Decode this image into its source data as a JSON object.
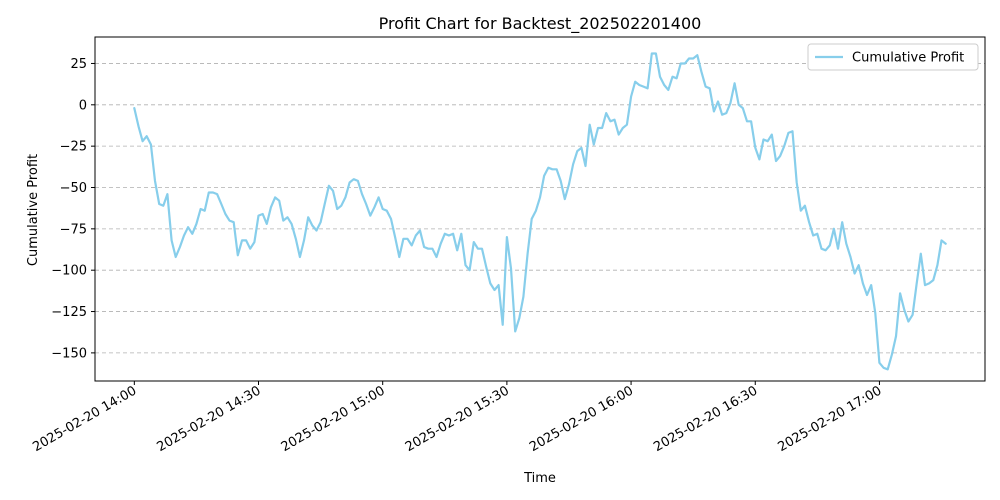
{
  "chart_data": {
    "type": "line",
    "title": "Profit Chart for Backtest_202502201400",
    "xlabel": "Time",
    "ylabel": "Cumulative Profit",
    "ylim": [
      -167,
      41
    ],
    "yticks": [
      25,
      0,
      -25,
      -50,
      -75,
      -100,
      -125,
      -150
    ],
    "ytick_labels": [
      "25",
      "0",
      "−25",
      "−50",
      "−75",
      "−100",
      "−125",
      "−150"
    ],
    "xlim_minutes": [
      -9.5,
      205.5
    ],
    "xticks_minutes": [
      0,
      30,
      60,
      90,
      120,
      150,
      180
    ],
    "xtick_labels": [
      "2025-02-20 14:00",
      "2025-02-20 14:30",
      "2025-02-20 15:00",
      "2025-02-20 15:30",
      "2025-02-20 16:00",
      "2025-02-20 16:30",
      "2025-02-20 17:00"
    ],
    "grid": "y-dashed",
    "legend_position": "top-right",
    "color": "#87ceeb",
    "series": [
      {
        "name": "Cumulative Profit",
        "x": [
          "14:00",
          "14:01",
          "14:02",
          "14:03",
          "14:04",
          "14:05",
          "14:06",
          "14:07",
          "14:08",
          "14:09",
          "14:10",
          "14:11",
          "14:12",
          "14:13",
          "14:14",
          "14:15",
          "14:16",
          "14:17",
          "14:18",
          "14:19",
          "14:20",
          "14:21",
          "14:22",
          "14:23",
          "14:24",
          "14:25",
          "14:26",
          "14:27",
          "14:28",
          "14:29",
          "14:30",
          "14:31",
          "14:32",
          "14:33",
          "14:34",
          "14:35",
          "14:36",
          "14:37",
          "14:38",
          "14:39",
          "14:40",
          "14:41",
          "14:42",
          "14:43",
          "14:44",
          "14:45",
          "14:46",
          "14:47",
          "14:48",
          "14:49",
          "14:50",
          "14:51",
          "14:52",
          "14:53",
          "14:54",
          "14:55",
          "14:56",
          "14:57",
          "14:58",
          "14:59",
          "15:00",
          "15:01",
          "15:02",
          "15:03",
          "15:04",
          "15:05",
          "15:06",
          "15:07",
          "15:08",
          "15:09",
          "15:10",
          "15:11",
          "15:12",
          "15:13",
          "15:14",
          "15:15",
          "15:16",
          "15:17",
          "15:18",
          "15:19",
          "15:20",
          "15:21",
          "15:22",
          "15:23",
          "15:24",
          "15:25",
          "15:26",
          "15:27",
          "15:28",
          "15:29",
          "15:30",
          "15:31",
          "15:32",
          "15:33",
          "15:34",
          "15:35",
          "15:36",
          "15:37",
          "15:38",
          "15:39",
          "15:40",
          "15:41",
          "15:42",
          "15:43",
          "15:44",
          "15:45",
          "15:46",
          "15:47",
          "15:48",
          "15:49",
          "15:50",
          "15:51",
          "15:52",
          "15:53",
          "15:54",
          "15:55",
          "15:56",
          "15:57",
          "15:58",
          "15:59",
          "16:00",
          "16:01",
          "16:02",
          "16:03",
          "16:04",
          "16:05",
          "16:06",
          "16:07",
          "16:08",
          "16:09",
          "16:10",
          "16:11",
          "16:12",
          "16:13",
          "16:14",
          "16:15",
          "16:16",
          "16:17",
          "16:18",
          "16:19",
          "16:20",
          "16:21",
          "16:22",
          "16:23",
          "16:24",
          "16:25",
          "16:26",
          "16:27",
          "16:28",
          "16:29",
          "16:30",
          "16:31",
          "16:32",
          "16:33",
          "16:34",
          "16:35",
          "16:36",
          "16:37",
          "16:38",
          "16:39",
          "16:40",
          "16:41",
          "16:42",
          "16:43",
          "16:44",
          "16:45",
          "16:46",
          "16:47",
          "16:48",
          "16:49",
          "16:50",
          "16:51",
          "16:52",
          "16:53",
          "16:54",
          "16:55",
          "16:56",
          "16:57",
          "16:58",
          "16:59",
          "17:00",
          "17:01",
          "17:02",
          "17:03",
          "17:04",
          "17:05",
          "17:06",
          "17:07",
          "17:08",
          "17:09",
          "17:10",
          "17:11",
          "17:12",
          "17:13",
          "17:14",
          "17:15",
          "17:16"
        ],
        "values": [
          -2,
          -13,
          -22,
          -19,
          -24,
          -46,
          -60,
          -61,
          -54,
          -82,
          -92,
          -86,
          -79,
          -74,
          -78,
          -72,
          -63,
          -64,
          -53,
          -53,
          -54,
          -60,
          -66,
          -70,
          -71,
          -91,
          -82,
          -82,
          -87,
          -83,
          -67,
          -66,
          -72,
          -62,
          -56,
          -58,
          -70,
          -68,
          -72,
          -81,
          -92,
          -82,
          -68,
          -73,
          -76,
          -71,
          -60,
          -49,
          -52,
          -63,
          -61,
          -56,
          -47,
          -45,
          -46,
          -54,
          -60,
          -67,
          -62,
          -56,
          -63,
          -64,
          -69,
          -80,
          -92,
          -81,
          -81,
          -85,
          -79,
          -76,
          -86,
          -87,
          -87,
          -92,
          -84,
          -78,
          -79,
          -78,
          -88,
          -78,
          -97,
          -100,
          -83,
          -87,
          -87,
          -98,
          -108,
          -112,
          -109,
          -133,
          -80,
          -99,
          -137,
          -129,
          -116,
          -90,
          -69,
          -64,
          -56,
          -43,
          -38,
          -39,
          -39,
          -46,
          -57,
          -48,
          -36,
          -28,
          -26,
          -37,
          -12,
          -24,
          -14,
          -14,
          -5,
          -10,
          -9,
          -18,
          -14,
          -12,
          5,
          14,
          12,
          11,
          10,
          31,
          31,
          17,
          12,
          9,
          17,
          16,
          25,
          25,
          28,
          28,
          30,
          20,
          11,
          10,
          -4,
          2,
          -6,
          -5,
          1,
          13,
          0,
          -2,
          -10,
          -10,
          -26,
          -33,
          -21,
          -22,
          -18,
          -34,
          -31,
          -25,
          -17,
          -16,
          -47,
          -64,
          -61,
          -71,
          -79,
          -78,
          -87,
          -88,
          -85,
          -75,
          -87,
          -71,
          -84,
          -92,
          -102,
          -97,
          -108,
          -115,
          -109,
          -126,
          -156,
          -159,
          -160,
          -151,
          -140,
          -114,
          -124,
          -131,
          -127,
          -108,
          -90,
          -109,
          -108,
          -106,
          -97,
          -82,
          -84
        ]
      }
    ]
  }
}
